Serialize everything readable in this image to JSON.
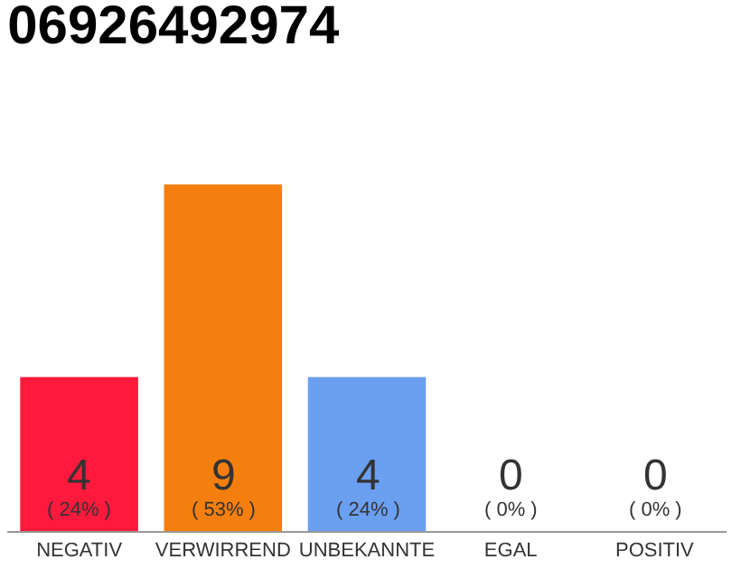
{
  "chart_data": {
    "type": "bar",
    "title": "06926492974",
    "categories": [
      "NEGATIV",
      "VERWIRREND",
      "UNBEKANNTE",
      "EGAL",
      "POSITIV"
    ],
    "values": [
      4,
      9,
      4,
      0,
      0
    ],
    "colors": [
      "#ff1a3d",
      "#f57f0e",
      "#6b9ff0",
      "#b0b0b0",
      "#b0b0b0"
    ],
    "value_labels": [
      "4\n( 24% )",
      "9\n( 53% )",
      "4\n( 24% )",
      "0\n( 0% )",
      "0\n( 0% )"
    ],
    "grid": false
  }
}
